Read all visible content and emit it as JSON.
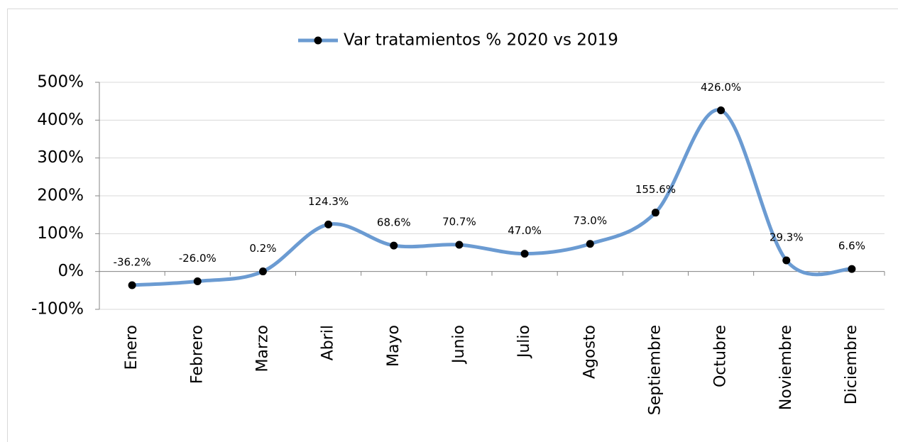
{
  "chart_data": {
    "type": "line",
    "categories": [
      "Enero",
      "Febrero",
      "Marzo",
      "Abril",
      "Mayo",
      "Junio",
      "Julio",
      "Agosto",
      "Septiembre",
      "Octubre",
      "Noviembre",
      "Diciembre"
    ],
    "series": [
      {
        "name": "Var tratamientos % 2020 vs 2019",
        "color": "#6b9bd2",
        "values": [
          -36.2,
          -26.0,
          0.2,
          124.3,
          68.6,
          70.7,
          47.0,
          73.0,
          155.6,
          426.0,
          29.3,
          6.6
        ],
        "value_labels": [
          "-36.2%",
          "-26.0%",
          "0.2%",
          "124.3%",
          "68.6%",
          "70.7%",
          "47.0%",
          "73.0%",
          "155.6%",
          "426.0%",
          "29.3%",
          "6.6%"
        ]
      }
    ],
    "ylim": [
      -100,
      500
    ],
    "yticks": [
      {
        "value": -100,
        "label": "-100%"
      },
      {
        "value": 0,
        "label": "0%"
      },
      {
        "value": 100,
        "label": "100%"
      },
      {
        "value": 200,
        "label": "200%"
      },
      {
        "value": 300,
        "label": "300%"
      },
      {
        "value": 400,
        "label": "400%"
      },
      {
        "value": 500,
        "label": "500%"
      }
    ],
    "grid": true,
    "smooth": true,
    "legend": "top"
  }
}
